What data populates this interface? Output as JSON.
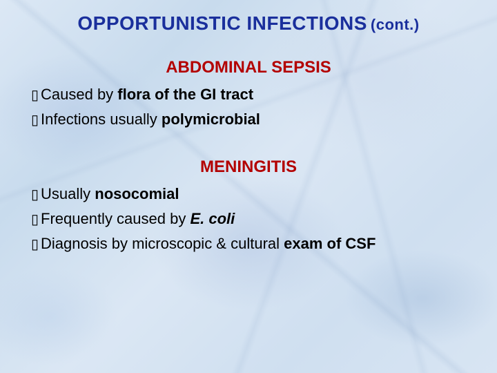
{
  "colors": {
    "title": "#1a2f9c",
    "subhead": "#b30000",
    "body": "#000000",
    "bullet_char": "▯"
  },
  "title": {
    "main": "OPPORTUNISTIC INFECTIONS",
    "cont": "(cont.)"
  },
  "sections": [
    {
      "heading": "ABDOMINAL SEPSIS",
      "bullets": [
        {
          "pre": "Caused by ",
          "bold": "flora of the GI tract",
          "post": ""
        },
        {
          "pre": "Infections usually ",
          "bold": "polymicrobial",
          "post": ""
        }
      ]
    },
    {
      "heading": "MENINGITIS",
      "bullets": [
        {
          "pre": "Usually ",
          "bold": "nosocomial",
          "post": ""
        },
        {
          "pre": "Frequently caused by ",
          "bolditalic": "E. coli",
          "post": ""
        },
        {
          "pre": "Diagnosis by microscopic & cultural ",
          "bold": "exam of CSF",
          "post": ""
        }
      ]
    }
  ],
  "typography": {
    "title_fontsize": 28,
    "cont_fontsize": 22,
    "subhead_fontsize": 24,
    "body_fontsize": 22
  }
}
